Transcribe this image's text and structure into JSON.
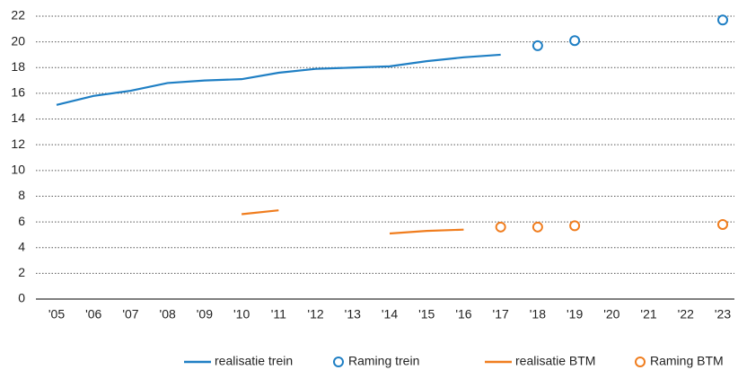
{
  "chart_data": {
    "type": "line",
    "categories": [
      "'05",
      "'06",
      "'07",
      "'08",
      "'09",
      "'10",
      "'11",
      "'12",
      "'13",
      "'14",
      "'15",
      "'16",
      "'17",
      "'18",
      "'19",
      "'20",
      "'21",
      "'22",
      "'23"
    ],
    "series": [
      {
        "name": "realisatie trein",
        "style": "line",
        "color": "#1f7fc4",
        "values": [
          15.1,
          15.8,
          16.2,
          16.8,
          17.0,
          17.1,
          17.6,
          17.9,
          18.0,
          18.1,
          18.5,
          18.8,
          19.0,
          null,
          null,
          null,
          null,
          null,
          null
        ]
      },
      {
        "name": "Raming trein",
        "style": "marker",
        "color": "#1f7fc4",
        "values": [
          null,
          null,
          null,
          null,
          null,
          null,
          null,
          null,
          null,
          null,
          null,
          null,
          null,
          19.7,
          20.1,
          null,
          null,
          null,
          21.7
        ]
      },
      {
        "name": "realisatie BTM",
        "style": "line",
        "color": "#f07d1e",
        "values": [
          null,
          null,
          null,
          null,
          null,
          6.6,
          6.9,
          null,
          null,
          5.1,
          5.3,
          5.4,
          null,
          null,
          null,
          null,
          null,
          null,
          null
        ]
      },
      {
        "name": "Raming BTM",
        "style": "marker",
        "color": "#f07d1e",
        "values": [
          null,
          null,
          null,
          null,
          null,
          null,
          null,
          null,
          null,
          null,
          null,
          null,
          5.6,
          5.6,
          5.7,
          null,
          null,
          null,
          5.8
        ]
      }
    ],
    "ylim": [
      0,
      22
    ],
    "yticks": [
      0,
      2,
      4,
      6,
      8,
      10,
      12,
      14,
      16,
      18,
      20,
      22
    ],
    "grid": true,
    "legend": "bottom"
  }
}
